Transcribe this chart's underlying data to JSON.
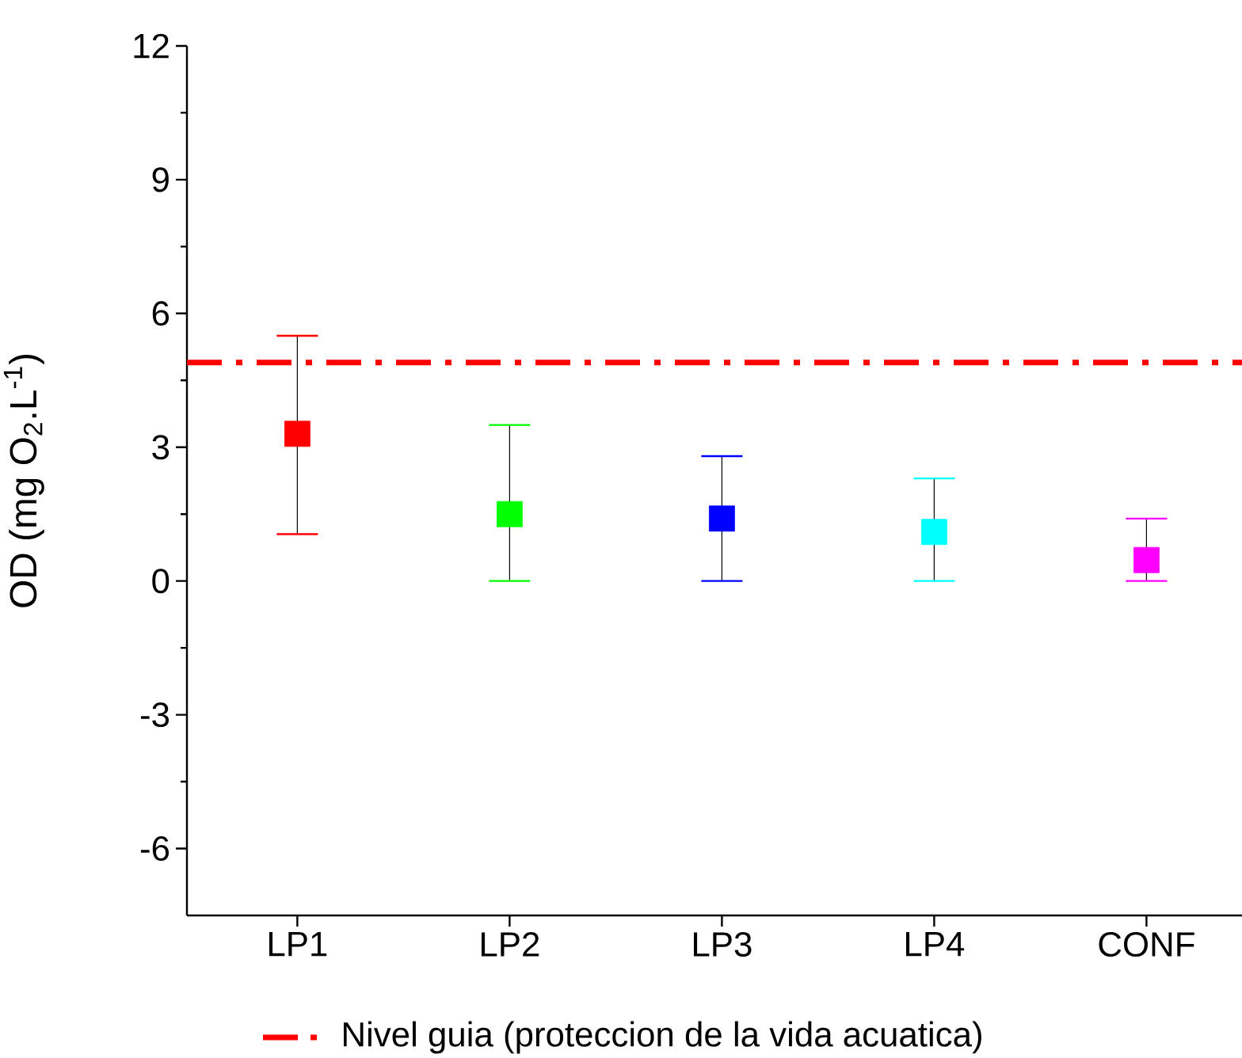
{
  "chart_data": {
    "type": "scatter",
    "ylabel": "OD (mg O$_{2}$.L$^{-1}$)",
    "categories": [
      "LP1",
      "LP2",
      "LP3",
      "LP4",
      "CONF"
    ],
    "values": [
      3.3,
      1.5,
      1.4,
      1.1,
      0.47
    ],
    "errors": [
      [
        1.05,
        5.5
      ],
      [
        0,
        3.5
      ],
      [
        0,
        2.8
      ],
      [
        0,
        2.3
      ],
      [
        0,
        1.4
      ]
    ],
    "colors": [
      "#ff0000",
      "#00ff00",
      "#0000ff",
      "#00ffff",
      "#ff00ff"
    ],
    "marker": "square",
    "ylim": [
      -7.5,
      12
    ],
    "yticks": [
      -6,
      {
        "value": -4.5,
        "label": null
      },
      -3,
      {
        "value": -1.5,
        "label": null
      },
      0,
      {
        "value": 1.5,
        "label": null
      },
      3,
      {
        "value": 4.5,
        "label": null
      },
      6,
      {
        "value": 7.5,
        "label": null
      },
      9,
      {
        "value": 10.5,
        "label": null
      },
      12
    ],
    "ref_lines": [
      {
        "axis": "y",
        "value": 4.9,
        "label": "Nivel guia (proteccion de la vida acuatica)",
        "color": "#ff0000",
        "line_style": "dashdot"
      }
    ],
    "legend": "bottom",
    "grid": false
  }
}
